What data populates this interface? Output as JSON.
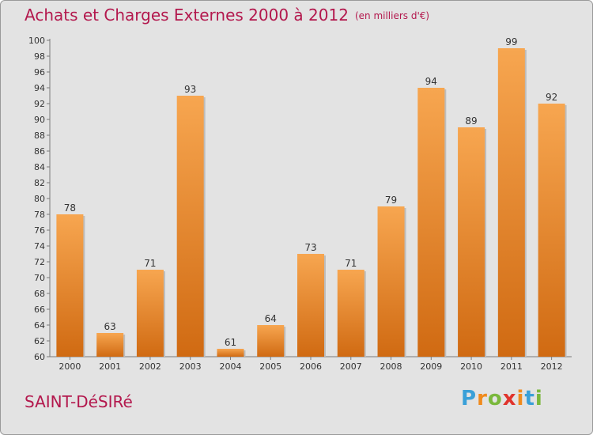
{
  "title": "Achats et Charges Externes 2000 à 2012",
  "subtitle": "(en milliers d'€)",
  "commune": "SAINT-DéSIRé",
  "logo": {
    "letters": [
      "P",
      "r",
      "o",
      "x",
      "i",
      "t",
      "i"
    ],
    "colors": [
      "#3aa0d8",
      "#f08a1c",
      "#7ab83c",
      "#e0342c",
      "#f08a1c",
      "#3aa0d8",
      "#7ab83c"
    ]
  },
  "chart_data": {
    "type": "bar",
    "categories": [
      "2000",
      "2001",
      "2002",
      "2003",
      "2004",
      "2005",
      "2006",
      "2007",
      "2008",
      "2009",
      "2010",
      "2011",
      "2012"
    ],
    "values": [
      78,
      63,
      71,
      93,
      61,
      64,
      73,
      71,
      79,
      94,
      89,
      99,
      92
    ],
    "ylim": [
      60,
      100
    ],
    "yticks": [
      60,
      62,
      64,
      66,
      68,
      70,
      72,
      74,
      76,
      78,
      80,
      82,
      84,
      86,
      88,
      90,
      92,
      94,
      96,
      98,
      100
    ],
    "grid": false,
    "bar_color_top": "#f7a650",
    "bar_color_bottom": "#d06a12"
  }
}
